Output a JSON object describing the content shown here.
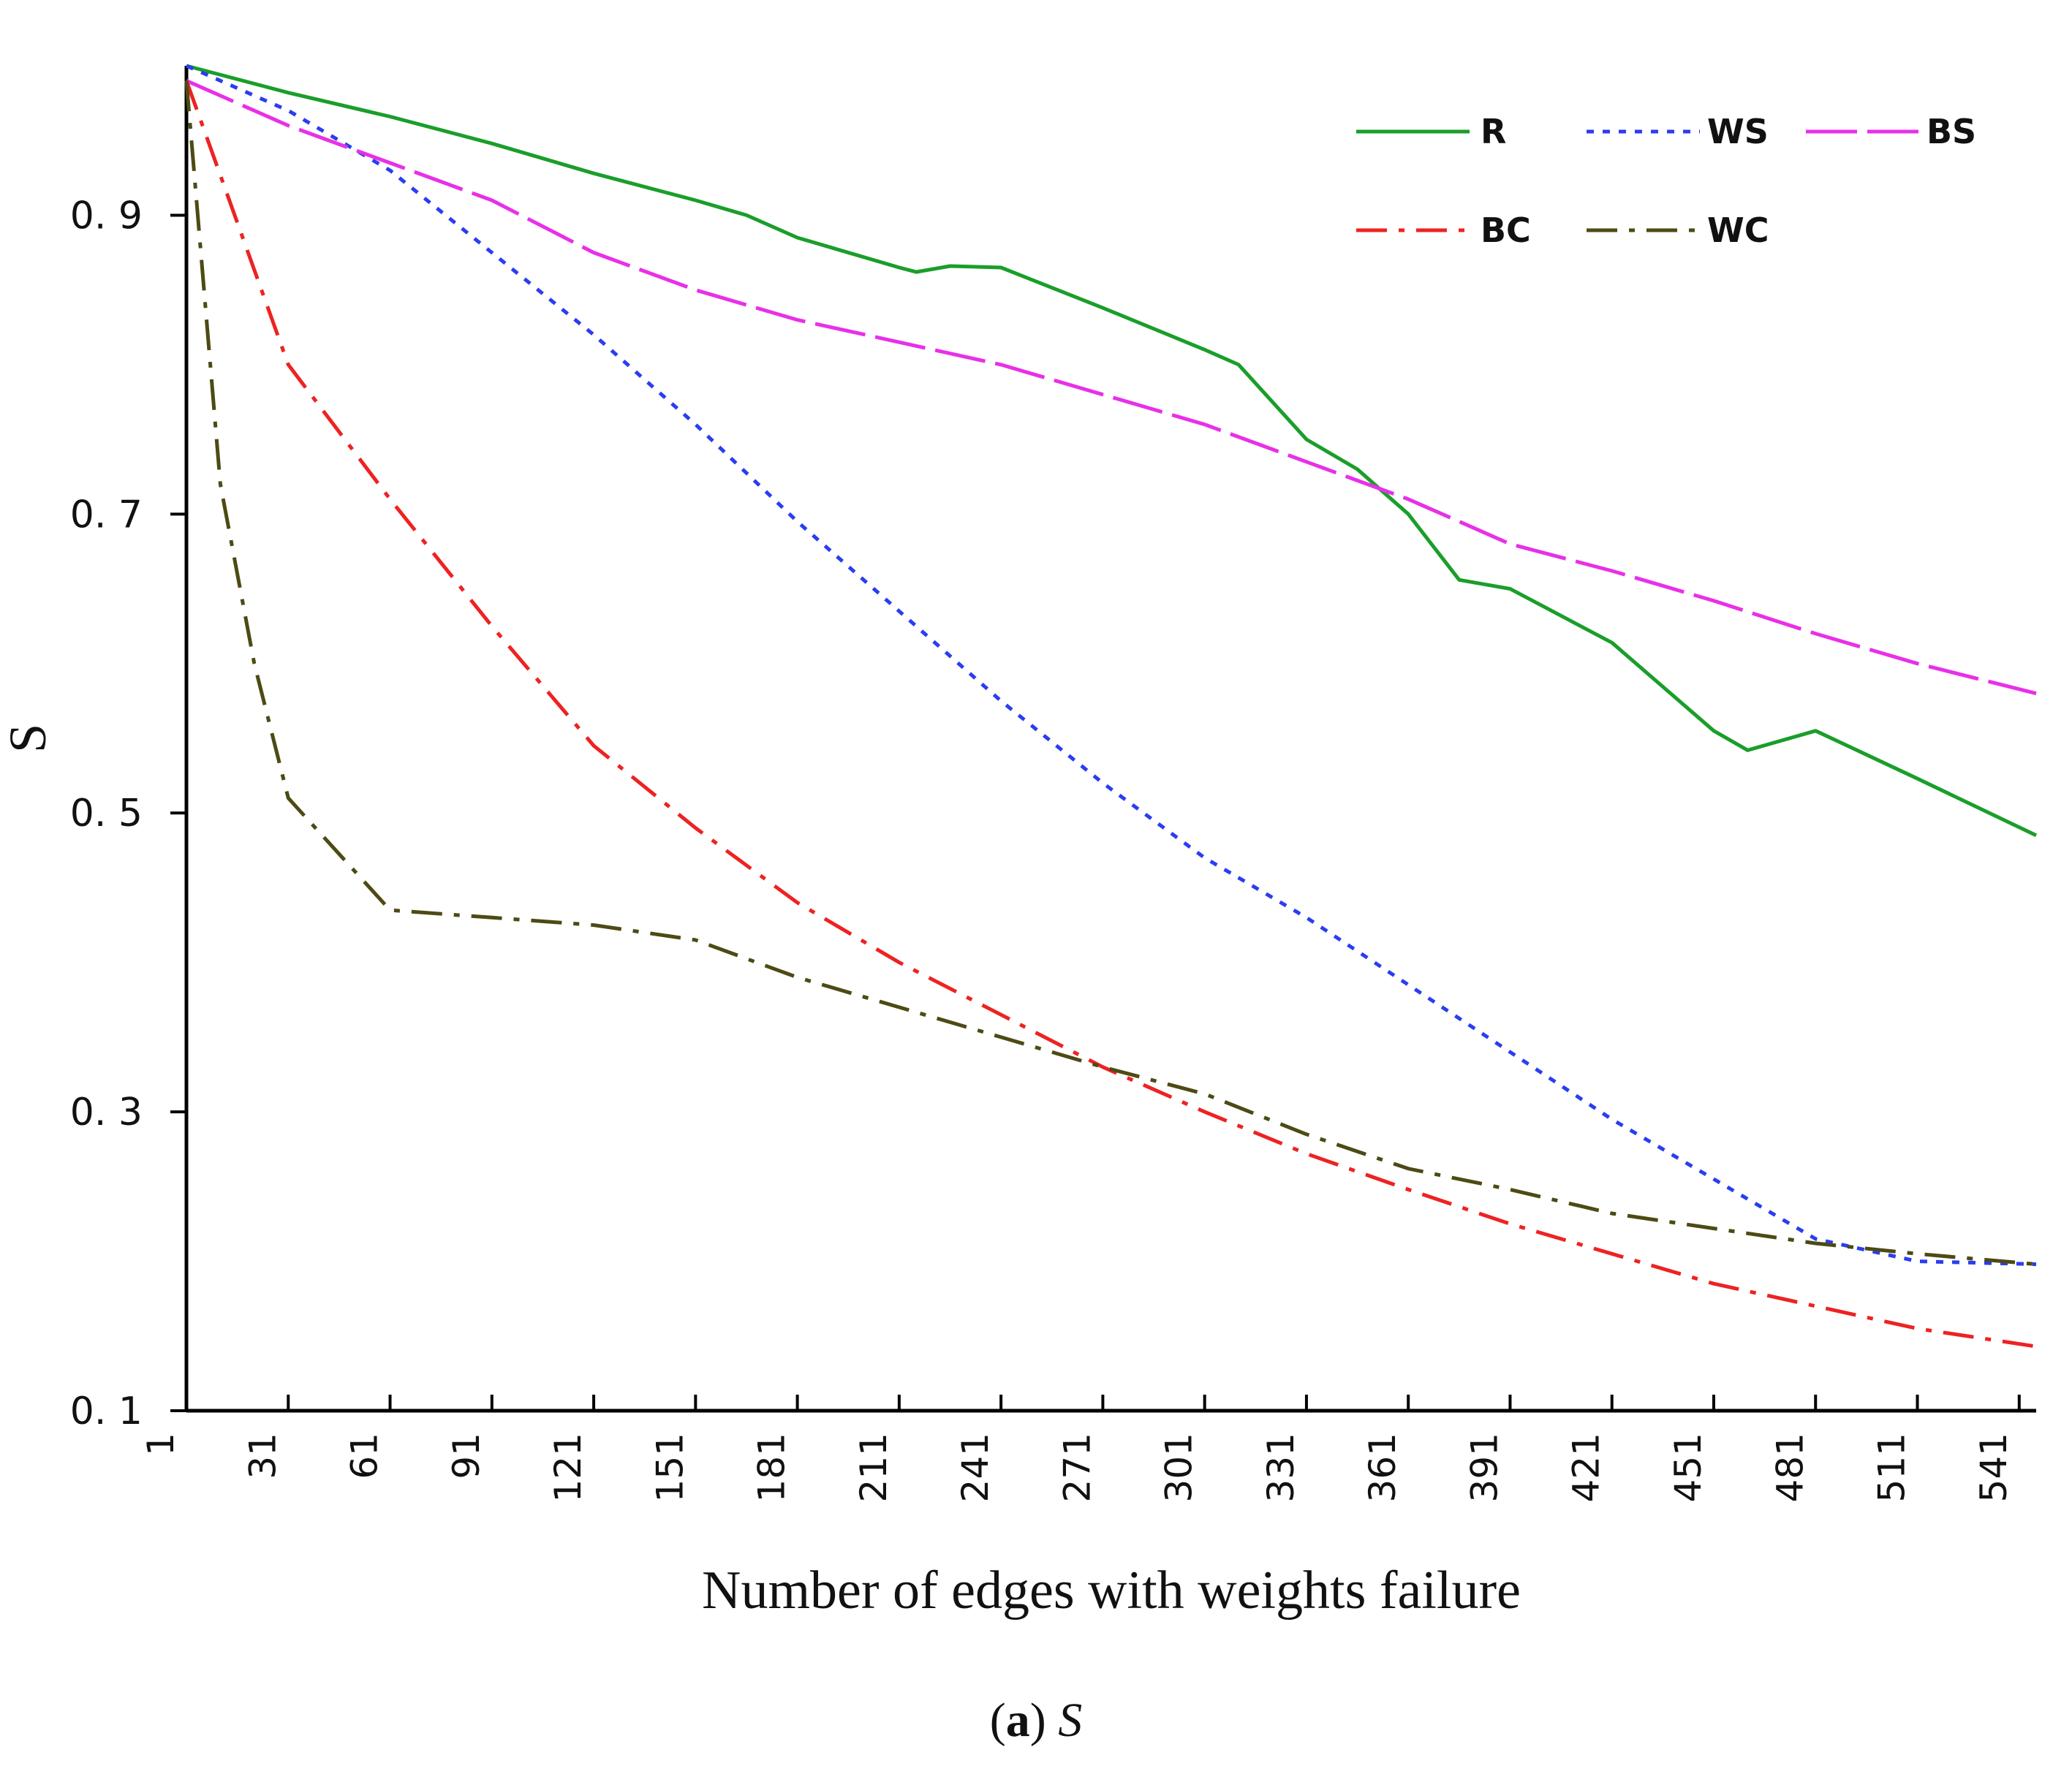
{
  "chart_data": {
    "type": "line",
    "caption_label": "a",
    "caption_var": "S",
    "xlabel": "Number of edges with weights failure",
    "ylabel": "S",
    "xlim": [
      1,
      546
    ],
    "ylim": [
      0.1,
      1.0
    ],
    "x_ticks": [
      "1",
      "31",
      "61",
      "91",
      "121",
      "151",
      "181",
      "211",
      "241",
      "271",
      "301",
      "331",
      "361",
      "391",
      "421",
      "451",
      "481",
      "511",
      "541"
    ],
    "y_ticks": [
      "0.1",
      "0.3",
      "0.5",
      "0.7",
      "0.9"
    ],
    "legend_placement": "top-right",
    "series": [
      {
        "name": "R",
        "color": "#1a9e2a",
        "dash": "solid",
        "x": [
          1,
          31,
          61,
          91,
          121,
          151,
          166,
          181,
          211,
          216,
          226,
          241,
          271,
          301,
          311,
          331,
          346,
          361,
          376,
          391,
          421,
          451,
          461,
          481,
          511,
          546
        ],
        "y": [
          1.0,
          0.982,
          0.966,
          0.948,
          0.928,
          0.91,
          0.9,
          0.885,
          0.865,
          0.862,
          0.866,
          0.865,
          0.838,
          0.81,
          0.8,
          0.75,
          0.73,
          0.7,
          0.656,
          0.65,
          0.614,
          0.555,
          0.542,
          0.555,
          0.523,
          0.485
        ]
      },
      {
        "name": "WS",
        "color": "#2a3df0",
        "dash": "dotted",
        "x": [
          1,
          31,
          61,
          91,
          121,
          151,
          181,
          211,
          241,
          271,
          301,
          331,
          361,
          391,
          421,
          451,
          481,
          511,
          546
        ],
        "y": [
          1.0,
          0.97,
          0.93,
          0.875,
          0.82,
          0.76,
          0.695,
          0.635,
          0.575,
          0.52,
          0.47,
          0.43,
          0.385,
          0.34,
          0.295,
          0.255,
          0.215,
          0.2,
          0.198
        ]
      },
      {
        "name": "BS",
        "color": "#e830e8",
        "dash": "long-dash",
        "x": [
          1,
          31,
          61,
          91,
          121,
          151,
          181,
          211,
          241,
          271,
          301,
          331,
          361,
          391,
          421,
          451,
          481,
          511,
          546
        ],
        "y": [
          0.99,
          0.96,
          0.935,
          0.91,
          0.875,
          0.85,
          0.83,
          0.815,
          0.8,
          0.78,
          0.76,
          0.735,
          0.71,
          0.68,
          0.662,
          0.642,
          0.62,
          0.6,
          0.58
        ]
      },
      {
        "name": "BC",
        "color": "#ee2222",
        "dash": "dash-dot",
        "x": [
          1,
          31,
          61,
          91,
          121,
          151,
          181,
          211,
          241,
          271,
          301,
          331,
          361,
          391,
          421,
          451,
          481,
          511,
          546
        ],
        "y": [
          0.99,
          0.8,
          0.71,
          0.625,
          0.545,
          0.49,
          0.44,
          0.4,
          0.365,
          0.33,
          0.3,
          0.272,
          0.248,
          0.225,
          0.205,
          0.185,
          0.17,
          0.155,
          0.143
        ]
      },
      {
        "name": "WC",
        "color": "#4d4a14",
        "dash": "dash-dot",
        "x": [
          1,
          11,
          21,
          31,
          61,
          91,
          121,
          151,
          181,
          211,
          241,
          271,
          301,
          331,
          361,
          391,
          421,
          451,
          481,
          511,
          546
        ],
        "y": [
          0.99,
          0.72,
          0.6,
          0.51,
          0.435,
          0.43,
          0.425,
          0.415,
          0.39,
          0.37,
          0.35,
          0.33,
          0.312,
          0.285,
          0.262,
          0.248,
          0.232,
          0.222,
          0.212,
          0.205,
          0.198
        ]
      }
    ]
  }
}
